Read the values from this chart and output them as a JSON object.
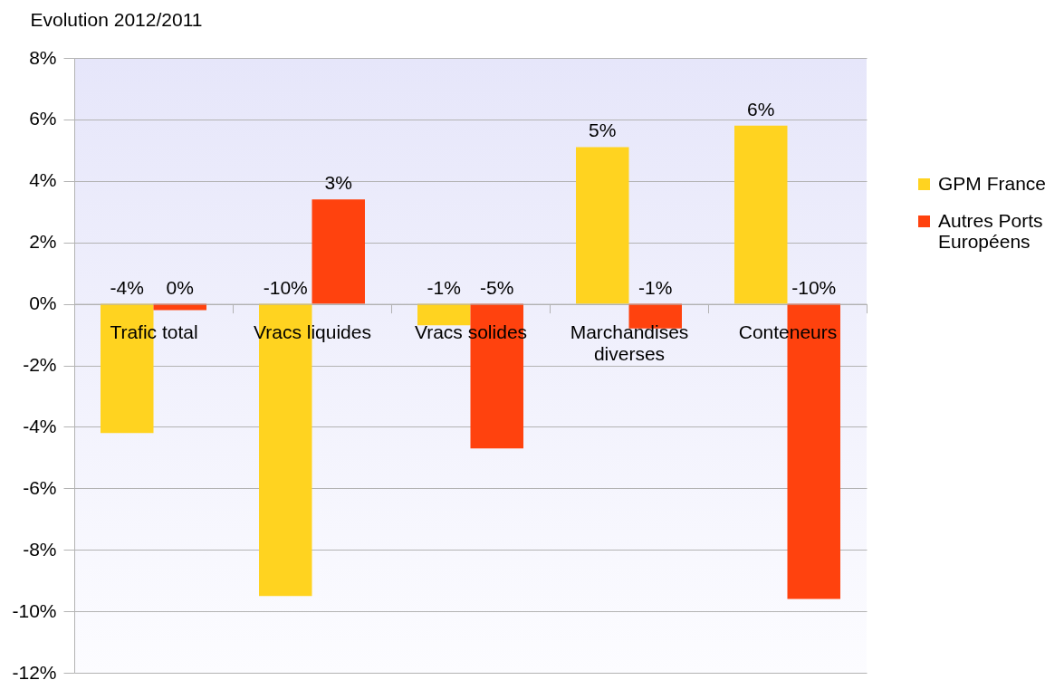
{
  "chart_data": {
    "type": "bar",
    "ylabel": "Evolution 2012/2011",
    "categories": [
      "Trafic total",
      "Vracs liquides",
      "Vracs solides",
      "Marchandises diverses",
      "Conteneurs"
    ],
    "series": [
      {
        "name": "GPM France",
        "color": "#ffd320",
        "values": [
          -4.2,
          -9.5,
          -0.7,
          5.1,
          5.8
        ],
        "value_labels": [
          "-4%",
          "-10%",
          "-1%",
          "5%",
          "6%"
        ]
      },
      {
        "name": "Autres Ports Européens",
        "color": "#ff420e",
        "values": [
          -0.2,
          3.4,
          -4.7,
          -0.8,
          -9.6
        ],
        "value_labels": [
          "0%",
          "3%",
          "-5%",
          "-1%",
          "-10%"
        ]
      }
    ],
    "ylim": [
      -12,
      8
    ],
    "yticks": [
      {
        "value": -12,
        "label": "-12%"
      },
      {
        "value": -10,
        "label": "-10%"
      },
      {
        "value": -8,
        "label": "-8%"
      },
      {
        "value": -6,
        "label": "-6%"
      },
      {
        "value": -4,
        "label": "-4%"
      },
      {
        "value": -2,
        "label": "-2%"
      },
      {
        "value": 0,
        "label": "0%"
      },
      {
        "value": 2,
        "label": "2%"
      },
      {
        "value": 4,
        "label": "4%"
      },
      {
        "value": 6,
        "label": "6%"
      },
      {
        "value": 8,
        "label": "8%"
      }
    ],
    "grid": "y",
    "legend": "right"
  }
}
